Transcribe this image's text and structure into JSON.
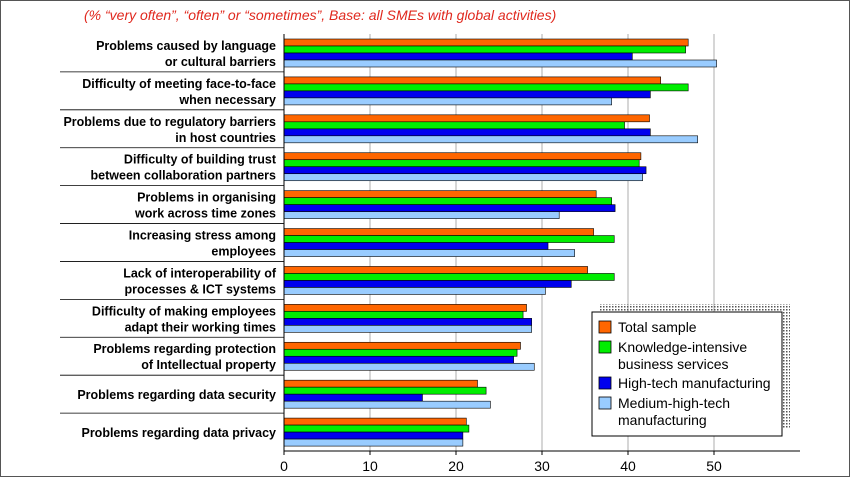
{
  "chart_data": {
    "type": "bar",
    "orientation": "horizontal",
    "subtitle": "(% “very often”, “often” or “sometimes”, Base: all SMEs with global activities)",
    "categories": [
      [
        "Problems caused by language",
        "or cultural barriers"
      ],
      [
        "Difficulty of meeting face-to-face",
        "when necessary"
      ],
      [
        "Problems due to regulatory barriers",
        "in host countries"
      ],
      [
        "Difficulty of building trust",
        "between collaboration partners"
      ],
      [
        "Problems in organising",
        "work across time zones"
      ],
      [
        "Increasing stress among",
        "employees"
      ],
      [
        "Lack of interoperability of",
        "processes & ICT systems"
      ],
      [
        "Difficulty of making employees",
        "adapt their working times"
      ],
      [
        "Problems regarding protection",
        "of Intellectual property"
      ],
      [
        "Problems regarding data security"
      ],
      [
        "Problems regarding data privacy"
      ]
    ],
    "series": [
      {
        "name": "Total sample",
        "color": "#ff6600",
        "values": [
          47,
          43.8,
          42.5,
          41.5,
          36.3,
          36,
          35.3,
          28.2,
          27.5,
          22.5,
          21.2
        ]
      },
      {
        "name": "Knowledge-intensive business services",
        "color": "#00ee00",
        "values": [
          46.7,
          47,
          39.6,
          41.3,
          38.1,
          38.4,
          38.4,
          27.8,
          27.1,
          23.5,
          21.5
        ]
      },
      {
        "name": "High-tech manufacturing",
        "color": "#0000ee",
        "values": [
          40.5,
          42.6,
          42.6,
          42.1,
          38.5,
          30.7,
          33.4,
          28.8,
          26.7,
          16.1,
          20.8
        ]
      },
      {
        "name": "Medium-high-tech manufacturing",
        "color": "#99ccff",
        "values": [
          50.3,
          38.1,
          48.1,
          41.7,
          32,
          33.8,
          30.4,
          28.8,
          29.1,
          24,
          20.8
        ]
      }
    ],
    "legend_labels": [
      [
        "Total sample"
      ],
      [
        "Knowledge-intensive",
        "business services"
      ],
      [
        "High-tech manufacturing"
      ],
      [
        "Medium-high-tech",
        "manufacturing"
      ]
    ],
    "xlim": [
      0,
      60
    ],
    "xticks": [
      0,
      10,
      20,
      30,
      40,
      50
    ],
    "grid": true,
    "legend_position": "bottom-right"
  }
}
